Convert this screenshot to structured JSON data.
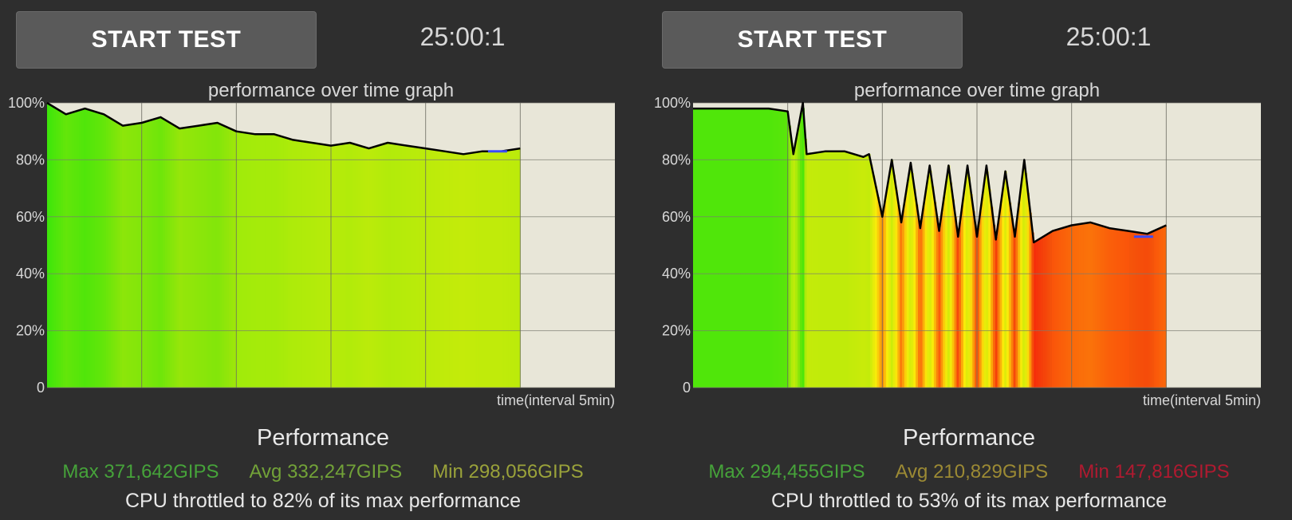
{
  "panels": [
    {
      "button_label": "START TEST",
      "timer": "25:00:1",
      "stats": {
        "max": "Max 371,642GIPS",
        "avg": "Avg 332,247GIPS",
        "min": "Min 298,056GIPS"
      },
      "stat_colors": {
        "max": "#46a33a",
        "avg": "#72a238",
        "min": "#9aa23a"
      },
      "throttle_text": "CPU throttled to 82% of its max performance",
      "performance_label": "Performance"
    },
    {
      "button_label": "START TEST",
      "timer": "25:00:1",
      "stats": {
        "max": "Max 294,455GIPS",
        "avg": "Avg 210,829GIPS",
        "min": "Min 147,816GIPS"
      },
      "stat_colors": {
        "max": "#46a33a",
        "avg": "#9c8a34",
        "min": "#b01a30"
      },
      "throttle_text": "CPU throttled to 53% of its max performance",
      "performance_label": "Performance"
    }
  ],
  "chart_data": [
    {
      "type": "area",
      "title": "performance over time graph",
      "xlabel": "time(interval 5min)",
      "ylabel": "",
      "ylim": [
        0,
        100
      ],
      "yticks": [
        "0",
        "20%",
        "40%",
        "60%",
        "80%",
        "100%"
      ],
      "xlim_minutes": [
        0,
        30
      ],
      "x": [
        0,
        1,
        2,
        3,
        4,
        5,
        6,
        7,
        8,
        9,
        10,
        11,
        12,
        13,
        14,
        15,
        16,
        17,
        18,
        19,
        20,
        21,
        22,
        23,
        24,
        25
      ],
      "series": [
        {
          "values": [
            100,
            96,
            98,
            96,
            92,
            93,
            95,
            91,
            92,
            93,
            90,
            89,
            89,
            87,
            86,
            85,
            86,
            84,
            86,
            85,
            84,
            83,
            82,
            83,
            83,
            84
          ],
          "color": "#000000"
        }
      ],
      "marker": {
        "x": 23.8,
        "y": 83,
        "color": "#3a4aff"
      }
    },
    {
      "type": "area",
      "title": "performance over time graph",
      "xlabel": "time(interval 5min)",
      "ylabel": "",
      "ylim": [
        0,
        100
      ],
      "yticks": [
        "0",
        "20%",
        "40%",
        "60%",
        "80%",
        "100%"
      ],
      "xlim_minutes": [
        0,
        30
      ],
      "x": [
        0,
        1,
        2,
        3,
        4,
        5,
        5.3,
        5.8,
        6,
        7,
        8,
        9,
        9.3,
        10,
        10.5,
        11,
        11.5,
        12,
        12.5,
        13,
        13.5,
        14,
        14.5,
        15,
        15.5,
        16,
        16.5,
        17,
        17.5,
        18,
        19,
        20,
        21,
        22,
        23,
        24,
        25
      ],
      "series": [
        {
          "values": [
            98,
            98,
            98,
            98,
            98,
            97,
            82,
            100,
            82,
            83,
            83,
            81,
            82,
            60,
            80,
            58,
            79,
            56,
            78,
            55,
            78,
            53,
            78,
            53,
            78,
            52,
            76,
            53,
            80,
            51,
            55,
            57,
            58,
            56,
            55,
            54,
            57
          ],
          "color": "#000000"
        }
      ],
      "marker": {
        "x": 23.8,
        "y": 53,
        "color": "#3a4aff"
      }
    }
  ]
}
